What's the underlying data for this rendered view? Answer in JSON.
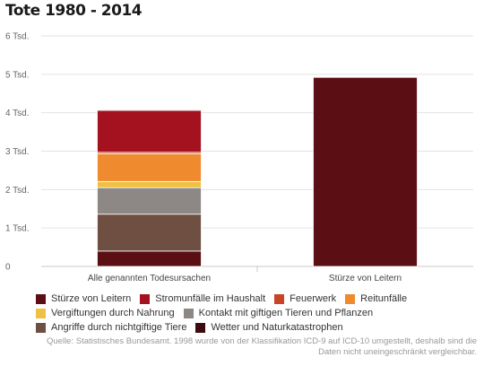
{
  "chart_data": {
    "type": "bar",
    "stacked": true,
    "title": "Tote 1980 - 2014",
    "categories": [
      "Alle genannten Todesursachen",
      "Stürze von Leitern"
    ],
    "yticks": [
      "0",
      "1 Tsd.",
      "2 Tsd.",
      "3 Tsd.",
      "4 Tsd.",
      "5 Tsd.",
      "6 Tsd."
    ],
    "ylim": [
      0,
      6000
    ],
    "grid": true,
    "legend_position": "bottom",
    "series": [
      {
        "name": "Stürze von Leitern",
        "color": "#5b0f14",
        "values": [
          400,
          4920
        ]
      },
      {
        "name": "Angriffe durch nichtgiftige Tiere",
        "color": "#6e4f42",
        "values": [
          960,
          0
        ]
      },
      {
        "name": "Kontakt mit giftigen Tieren und Pflanzen",
        "color": "#8d8785",
        "values": [
          690,
          0
        ]
      },
      {
        "name": "Vergiftungen durch Nahrung",
        "color": "#f0c040",
        "values": [
          160,
          0
        ]
      },
      {
        "name": "Reitunfälle",
        "color": "#ef8a2e",
        "values": [
          720,
          0
        ]
      },
      {
        "name": "Feuerwerk",
        "color": "#c94424",
        "values": [
          40,
          0
        ]
      },
      {
        "name": "Stromunfälle im Haushalt",
        "color": "#a5121f",
        "values": [
          1090,
          0
        ]
      },
      {
        "name": "Wetter und Naturkatastrophen",
        "color": "#3d0a0e",
        "values": [
          20,
          0
        ]
      }
    ],
    "legend_order": [
      "Stürze von Leitern",
      "Stromunfälle im Haushalt",
      "Feuerwerk",
      "Reitunfälle",
      "Vergiftungen durch Nahrung",
      "Kontakt mit giftigen Tieren und Pflanzen",
      "Angriffe durch nichtgiftige Tiere",
      "Wetter und Naturkatastrophen"
    ],
    "source": "Quelle: Statistisches Bundesamt. 1998 wurde von der Klassifikation ICD-9 auf ICD-10 umgestellt, deshalb sind die Daten nicht uneingeschränkt vergleichbar."
  }
}
